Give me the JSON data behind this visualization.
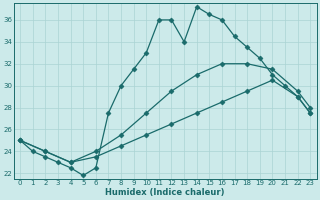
{
  "xlabel": "Humidex (Indice chaleur)",
  "bg_color": "#cceaea",
  "line_color": "#1a6b6b",
  "grid_color": "#aad4d4",
  "xlim": [
    -0.5,
    23.5
  ],
  "ylim": [
    21.5,
    37.5
  ],
  "xticks": [
    0,
    1,
    2,
    3,
    4,
    5,
    6,
    7,
    8,
    9,
    10,
    11,
    12,
    13,
    14,
    15,
    16,
    17,
    18,
    19,
    20,
    21,
    22,
    23
  ],
  "yticks": [
    22,
    24,
    26,
    28,
    30,
    32,
    34,
    36
  ],
  "line1_x": [
    0,
    1,
    2,
    3,
    4,
    5,
    6,
    7,
    8,
    9,
    10,
    11,
    12,
    13,
    14,
    15,
    16,
    17,
    18,
    19,
    20,
    21,
    22,
    23
  ],
  "line1_y": [
    25,
    24.0,
    23.5,
    23.0,
    22.5,
    21.8,
    22.5,
    27.5,
    30.0,
    31.5,
    33.0,
    36.0,
    36.0,
    34.0,
    37.2,
    36.5,
    36.0,
    34.5,
    33.5,
    32.5,
    31.0,
    30.0,
    29.0,
    27.5
  ],
  "line2_x": [
    0,
    2,
    4,
    6,
    8,
    10,
    12,
    14,
    16,
    18,
    20,
    22,
    23
  ],
  "line2_y": [
    25,
    24.0,
    23.0,
    24.0,
    25.5,
    27.5,
    29.5,
    31.0,
    32.0,
    32.0,
    31.5,
    29.5,
    28.0
  ],
  "line3_x": [
    0,
    2,
    4,
    6,
    8,
    10,
    12,
    14,
    16,
    18,
    20,
    22,
    23
  ],
  "line3_y": [
    25,
    24.0,
    23.0,
    23.5,
    24.5,
    25.5,
    26.5,
    27.5,
    28.5,
    29.5,
    30.5,
    29.0,
    27.5
  ]
}
